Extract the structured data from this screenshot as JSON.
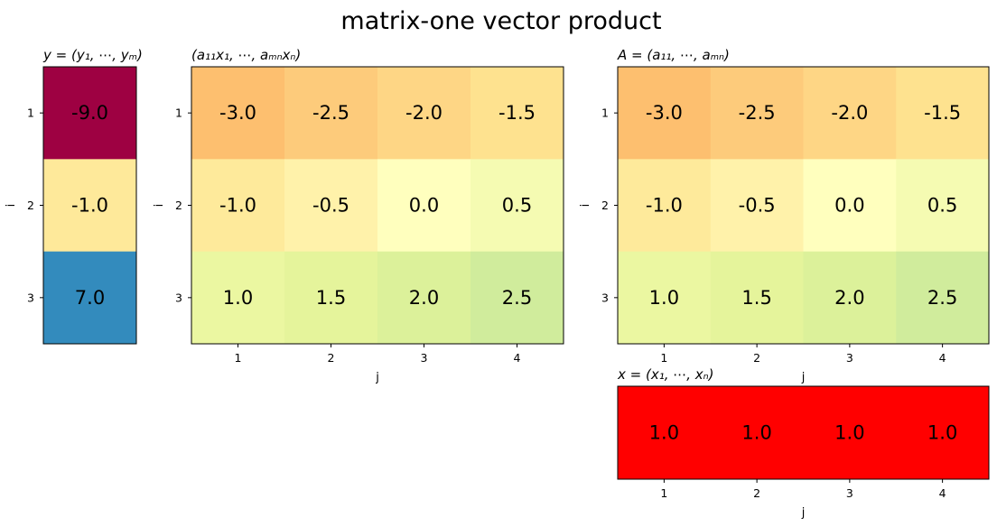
{
  "figure_title": "matrix-one vector product",
  "chart_data": [
    {
      "id": "y",
      "type": "heatmap",
      "title": "y = (y₁, ⋯, yₘ)",
      "xlabel": "",
      "ylabel": "i",
      "x_ticks": [],
      "y_ticks": [
        "1",
        "2",
        "3"
      ],
      "colormap": "Spectral",
      "values": [
        [
          -9.0
        ],
        [
          -1.0
        ],
        [
          7.0
        ]
      ],
      "labels": [
        [
          "-9.0"
        ],
        [
          "-1.0"
        ],
        [
          "7.0"
        ]
      ],
      "cell_colors": [
        [
          "#9e0142"
        ],
        [
          "#fee99a"
        ],
        [
          "#338bbd"
        ]
      ]
    },
    {
      "id": "product",
      "type": "heatmap",
      "title": "(a₁₁x₁, ⋯, aₘₙxₙ)",
      "xlabel": "j",
      "ylabel": "i",
      "x_ticks": [
        "1",
        "2",
        "3",
        "4"
      ],
      "y_ticks": [
        "1",
        "2",
        "3"
      ],
      "colormap": "Spectral",
      "values": [
        [
          -3.0,
          -2.5,
          -2.0,
          -1.5
        ],
        [
          -1.0,
          -0.5,
          0.0,
          0.5
        ],
        [
          1.0,
          1.5,
          2.0,
          2.5
        ]
      ],
      "labels": [
        [
          "-3.0",
          "-2.5",
          "-2.0",
          "-1.5"
        ],
        [
          "-1.0",
          "-0.5",
          "0.0",
          "0.5"
        ],
        [
          "1.0",
          "1.5",
          "2.0",
          "2.5"
        ]
      ],
      "cell_colors": [
        [
          "#fdbf6f",
          "#fdcb7b",
          "#fed685",
          "#fee28f"
        ],
        [
          "#feea9b",
          "#fff2aa",
          "#ffffbe",
          "#f5fbb2"
        ],
        [
          "#ebf7a1",
          "#e5f49b",
          "#dcf19a",
          "#d0ec9c"
        ]
      ]
    },
    {
      "id": "A",
      "type": "heatmap",
      "title": "A = (a₁₁, ⋯, aₘₙ)",
      "xlabel": "j",
      "ylabel": "i",
      "x_ticks": [
        "1",
        "2",
        "3",
        "4"
      ],
      "y_ticks": [
        "1",
        "2",
        "3"
      ],
      "colormap": "Spectral",
      "values": [
        [
          -3.0,
          -2.5,
          -2.0,
          -1.5
        ],
        [
          -1.0,
          -0.5,
          0.0,
          0.5
        ],
        [
          1.0,
          1.5,
          2.0,
          2.5
        ]
      ],
      "labels": [
        [
          "-3.0",
          "-2.5",
          "-2.0",
          "-1.5"
        ],
        [
          "-1.0",
          "-0.5",
          "0.0",
          "0.5"
        ],
        [
          "1.0",
          "1.5",
          "2.0",
          "2.5"
        ]
      ],
      "cell_colors": [
        [
          "#fdbf6f",
          "#fdcb7b",
          "#fed685",
          "#fee28f"
        ],
        [
          "#feea9b",
          "#fff2aa",
          "#ffffbe",
          "#f5fbb2"
        ],
        [
          "#ebf7a1",
          "#e5f49b",
          "#dcf19a",
          "#d0ec9c"
        ]
      ]
    },
    {
      "id": "x",
      "type": "heatmap",
      "title": "x = (x₁, ⋯, xₙ)",
      "xlabel": "j",
      "ylabel": "",
      "x_ticks": [
        "1",
        "2",
        "3",
        "4"
      ],
      "y_ticks": [],
      "colormap": "solid",
      "values": [
        [
          1.0,
          1.0,
          1.0,
          1.0
        ]
      ],
      "labels": [
        [
          "1.0",
          "1.0",
          "1.0",
          "1.0"
        ]
      ],
      "cell_colors": [
        [
          "#ff0000",
          "#ff0000",
          "#ff0000",
          "#ff0000"
        ]
      ]
    }
  ]
}
